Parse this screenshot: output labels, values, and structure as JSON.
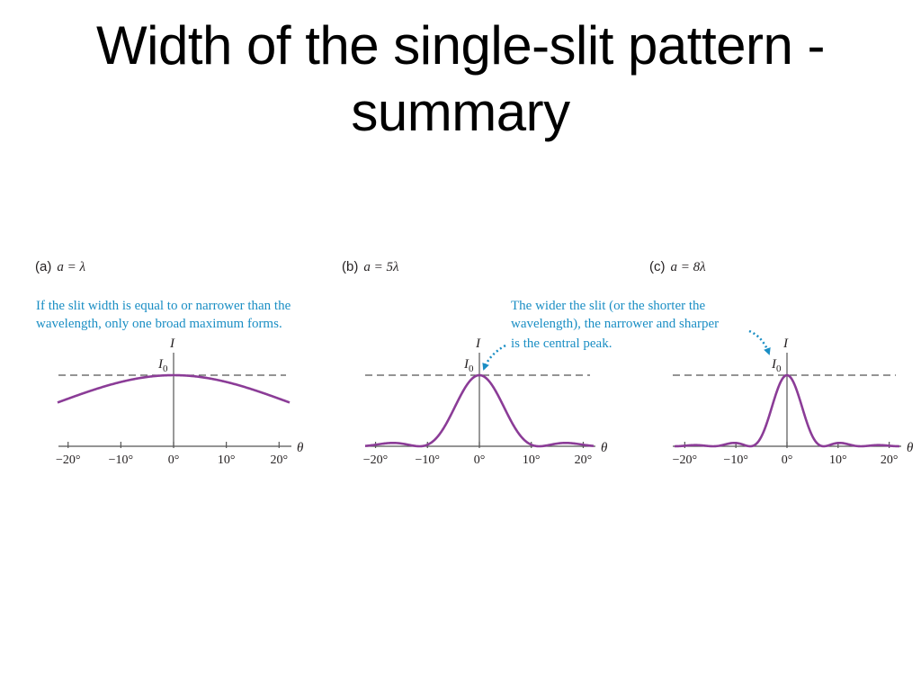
{
  "slide": {
    "title": "Width of the single-slit pattern - summary"
  },
  "colors": {
    "curve": "#8b3c97",
    "annotation": "#1a8ec4",
    "axis": "#555555",
    "text": "#231f20"
  },
  "annotations": {
    "left": [
      "If the slit width is equal to or narrower than the",
      "wavelength, only one broad maximum forms."
    ],
    "right": [
      "The wider the slit (or the shorter the",
      "wavelength), the narrower and sharper",
      "is the central peak."
    ]
  },
  "chart_data": [
    {
      "type": "line",
      "panel_letter": "(a)",
      "panel_condition": "a = λ",
      "a_over_lambda": 1,
      "xlabel": "θ",
      "ylabel": "I",
      "reference_line_label": "I0",
      "x_ticks": [
        "−20°",
        "−10°",
        "0°",
        "10°",
        "20°"
      ],
      "xlim": [
        -22,
        22
      ],
      "series": [
        {
          "x": [
            -22,
            -20,
            -15,
            -10,
            -5,
            0,
            5,
            10,
            15,
            20,
            22
          ],
          "y": [
            0.66,
            0.72,
            0.84,
            0.93,
            0.98,
            1.0,
            0.98,
            0.93,
            0.84,
            0.72,
            0.66
          ]
        }
      ]
    },
    {
      "type": "line",
      "panel_letter": "(b)",
      "panel_condition": "a = 5λ",
      "a_over_lambda": 5,
      "xlabel": "θ",
      "ylabel": "I",
      "reference_line_label": "I0",
      "x_ticks": [
        "−20°",
        "−10°",
        "0°",
        "10°",
        "20°"
      ],
      "xlim": [
        -22,
        22
      ],
      "series": [
        {
          "x": [
            -22,
            -17,
            -11.5,
            -5,
            0,
            5,
            11.5,
            17,
            22
          ],
          "y": [
            0.02,
            0.08,
            0.0,
            0.52,
            1.0,
            0.52,
            0.0,
            0.08,
            0.02
          ]
        }
      ]
    },
    {
      "type": "line",
      "panel_letter": "(c)",
      "panel_condition": "a = 8λ",
      "a_over_lambda": 8,
      "xlabel": "θ",
      "ylabel": "I",
      "reference_line_label": "I0",
      "x_ticks": [
        "−20°",
        "−10°",
        "0°",
        "10°",
        "20°"
      ],
      "xlim": [
        -22,
        22
      ],
      "series": [
        {
          "x": [
            -22,
            -14,
            -10.5,
            -7.2,
            -3.5,
            0,
            3.5,
            7.2,
            10.5,
            14,
            22
          ],
          "y": [
            0.03,
            0.0,
            0.05,
            0.0,
            0.4,
            1.0,
            0.4,
            0.0,
            0.05,
            0.0,
            0.03
          ]
        }
      ]
    }
  ]
}
